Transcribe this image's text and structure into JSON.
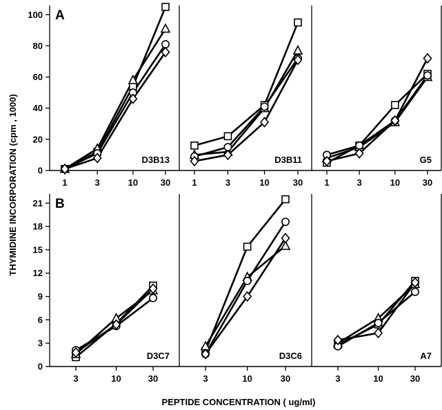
{
  "figure": {
    "ylabel": "THYMIDINE INCORPORATION (cpm , 1000)",
    "xlabel": "PEPTIDE CONCENTRATION ( ug/ml)"
  },
  "chart_data": [
    {
      "type": "line",
      "row": "A",
      "panel_label": "D3B13",
      "x_scale": "log",
      "x": [
        1,
        3,
        10,
        30
      ],
      "x_ticks": [
        "1",
        "3",
        "10",
        "30"
      ],
      "ylim": [
        0,
        105
      ],
      "y_ticks": [
        0,
        20,
        40,
        60,
        80,
        100
      ],
      "series": [
        {
          "marker": "square",
          "values": [
            1,
            12,
            54,
            105
          ]
        },
        {
          "marker": "triangle",
          "values": [
            1,
            14,
            58,
            91
          ]
        },
        {
          "marker": "circle",
          "values": [
            1,
            11,
            50,
            81
          ]
        },
        {
          "marker": "diamond",
          "values": [
            1,
            8,
            46,
            76
          ]
        }
      ]
    },
    {
      "type": "line",
      "row": "A",
      "panel_label": "D3B11",
      "x_scale": "log",
      "x": [
        1,
        3,
        10,
        30
      ],
      "x_ticks": [
        "1",
        "3",
        "10",
        "30"
      ],
      "ylim": [
        0,
        105
      ],
      "y_ticks": [
        0,
        20,
        40,
        60,
        80,
        100
      ],
      "series": [
        {
          "marker": "square",
          "values": [
            16,
            22,
            42,
            95
          ]
        },
        {
          "marker": "triangle",
          "values": [
            10,
            12,
            40,
            77
          ]
        },
        {
          "marker": "circle",
          "values": [
            9,
            15,
            41,
            72
          ]
        },
        {
          "marker": "diamond",
          "values": [
            6,
            10,
            31,
            71
          ]
        }
      ]
    },
    {
      "type": "line",
      "row": "A",
      "panel_label": "G5",
      "x_scale": "log",
      "x": [
        1,
        3,
        10,
        30
      ],
      "x_ticks": [
        "1",
        "3",
        "10",
        "30"
      ],
      "ylim": [
        0,
        105
      ],
      "y_ticks": [
        0,
        20,
        40,
        60,
        80,
        100
      ],
      "series": [
        {
          "marker": "square",
          "values": [
            5,
            16,
            42,
            62
          ]
        },
        {
          "marker": "triangle",
          "values": [
            8,
            15,
            31,
            60
          ]
        },
        {
          "marker": "circle",
          "values": [
            10,
            16,
            32,
            61
          ]
        },
        {
          "marker": "diamond",
          "values": [
            6,
            11,
            32,
            72
          ]
        }
      ]
    },
    {
      "type": "line",
      "row": "B",
      "panel_label": "D3C7",
      "x_scale": "log",
      "x": [
        3,
        10,
        30
      ],
      "x_ticks": [
        "3",
        "10",
        "30"
      ],
      "ylim": [
        0,
        22
      ],
      "y_ticks": [
        0,
        3,
        6,
        9,
        12,
        15,
        18,
        21
      ],
      "series": [
        {
          "marker": "square",
          "values": [
            1.2,
            5.5,
            10.4
          ]
        },
        {
          "marker": "triangle",
          "values": [
            1.6,
            6.2,
            9.8
          ]
        },
        {
          "marker": "circle",
          "values": [
            2.1,
            5.2,
            8.8
          ]
        },
        {
          "marker": "diamond",
          "values": [
            1.8,
            5.4,
            10.0
          ]
        }
      ]
    },
    {
      "type": "line",
      "row": "B",
      "panel_label": "D3C6",
      "x_scale": "log",
      "x": [
        3,
        10,
        30
      ],
      "x_ticks": [
        "3",
        "10",
        "30"
      ],
      "ylim": [
        0,
        22
      ],
      "y_ticks": [
        0,
        3,
        6,
        9,
        12,
        15,
        18,
        21
      ],
      "series": [
        {
          "marker": "square",
          "values": [
            2.0,
            15.4,
            21.5
          ]
        },
        {
          "marker": "triangle",
          "values": [
            2.6,
            11.5,
            15.5
          ]
        },
        {
          "marker": "circle",
          "values": [
            1.6,
            11.0,
            18.6
          ]
        },
        {
          "marker": "diamond",
          "values": [
            1.6,
            9.0,
            16.5
          ]
        }
      ]
    },
    {
      "type": "line",
      "row": "B",
      "panel_label": "A7",
      "x_scale": "log",
      "x": [
        3,
        10,
        30
      ],
      "x_ticks": [
        "3",
        "10",
        "30"
      ],
      "ylim": [
        0,
        22
      ],
      "y_ticks": [
        0,
        3,
        6,
        9,
        12,
        15,
        18,
        21
      ],
      "series": [
        {
          "marker": "square",
          "values": [
            2.8,
            5.4,
            11.0
          ]
        },
        {
          "marker": "triangle",
          "values": [
            3.0,
            6.2,
            10.6
          ]
        },
        {
          "marker": "circle",
          "values": [
            2.6,
            5.6,
            9.6
          ]
        },
        {
          "marker": "diamond",
          "values": [
            3.4,
            4.3,
            10.8
          ]
        }
      ]
    }
  ]
}
